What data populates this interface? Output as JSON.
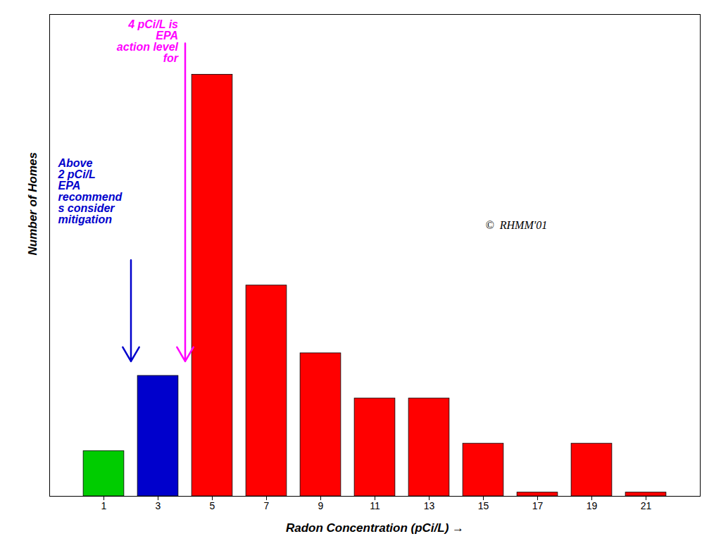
{
  "chart_data": {
    "type": "bar",
    "x": [
      1,
      3,
      5,
      7,
      9,
      11,
      13,
      15,
      17,
      19,
      21
    ],
    "values": [
      3.0,
      8.0,
      28.0,
      14.0,
      9.5,
      6.5,
      6.5,
      3.5,
      0.25,
      3.5,
      0.25
    ],
    "colors": [
      "#00cc00",
      "#0000cc",
      "#ff0000",
      "#ff0000",
      "#ff0000",
      "#ff0000",
      "#ff0000",
      "#ff0000",
      "#ff0000",
      "#ff0000",
      "#ff0000"
    ],
    "xlabel": "Radon Concentration (pCi/L)",
    "ylabel": "Number of Homes",
    "xlim": [
      -1,
      23
    ],
    "xticks": [
      1,
      3,
      5,
      7,
      9,
      11,
      13,
      15,
      17,
      19,
      21
    ],
    "ylim": [
      0,
      32
    ],
    "tick_labels": "x",
    "annotations": [
      {
        "text": "4 pCi/L is\nEPA\naction level\nfor",
        "color": "#ff00ff"
      },
      {
        "text": "Above\n2 pCi/L\nEPA\nrecommend\ns consider\nmitigation",
        "color": "#0000cc"
      },
      {
        "text": "©  RHMM'01",
        "color": "#000000"
      }
    ]
  }
}
